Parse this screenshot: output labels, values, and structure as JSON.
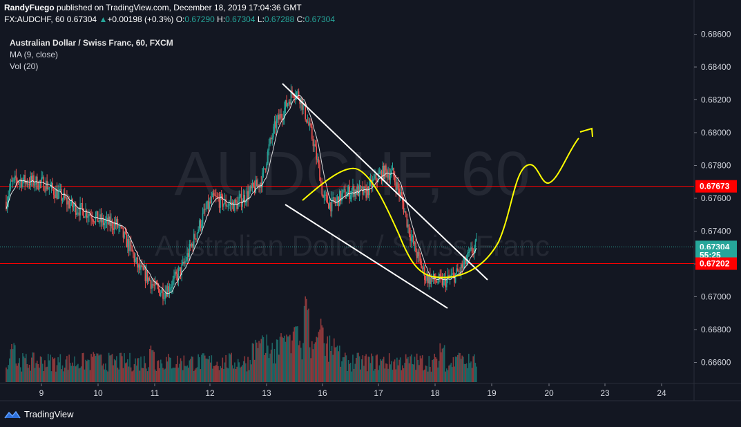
{
  "header": {
    "author": "RandyFuego",
    "published_text": "published on TradingView.com, December 18, 2019 17:04:36 GMT",
    "symbol_line": "FX:AUDCHF, 60",
    "last": "0.67304",
    "change_arrow": "▲",
    "change": "+0.00198 (+0.3%)",
    "o_label": "O:",
    "o_value": "0.67290",
    "h_label": "H:",
    "h_value": "0.67304",
    "l_label": "L:",
    "l_value": "0.67288",
    "c_label": "C:",
    "c_value": "0.67304"
  },
  "legend": {
    "title": "Australian Dollar / Swiss Franc, 60, FXCM",
    "ma": "MA (9, close)",
    "vol": "Vol (20)"
  },
  "watermark": {
    "symbol": "AUDCHF, 60",
    "name": "Australian Dollar / Swiss Franc"
  },
  "footer": {
    "brand": "TradingView"
  },
  "colors": {
    "background": "#131722",
    "up": "#26a69a",
    "down": "#ef5350",
    "level_line": "#ff0000",
    "price_label": "#26a69a",
    "drawing_white": "#ffffff",
    "drawing_yellow": "#ffff00"
  },
  "chart_data": {
    "type": "candlestick",
    "title": "Australian Dollar / Swiss Franc, 60, FXCM",
    "ylim": [
      0.6648,
      0.6864
    ],
    "y_ticks": [
      "0.68600",
      "0.68400",
      "0.68200",
      "0.68000",
      "0.67800",
      "0.67600",
      "0.67400",
      "0.67200",
      "0.67000",
      "0.66800",
      "0.66600"
    ],
    "x_ticks": [
      "9",
      "10",
      "11",
      "12",
      "13",
      "16",
      "17",
      "18",
      "19",
      "20",
      "23",
      "24"
    ],
    "price_labels": [
      {
        "text": "0.67673",
        "value": 0.67673,
        "color": "#ff0000"
      },
      {
        "text": "0.67304",
        "value": 0.67304,
        "color": "#26a69a"
      },
      {
        "text": "55:25",
        "value": 0.67252,
        "color": "#26a69a"
      },
      {
        "text": "0.67202",
        "value": 0.67202,
        "color": "#ff0000"
      }
    ],
    "horizontal_levels": [
      0.67673,
      0.67202
    ],
    "last_price": 0.67304,
    "series": [
      {
        "name": "price",
        "anchors": [
          [
            0,
            0.6758
          ],
          [
            4,
            0.6768
          ],
          [
            10,
            0.6771
          ],
          [
            25,
            0.677
          ],
          [
            35,
            0.6769
          ],
          [
            48,
            0.6762
          ],
          [
            60,
            0.6755
          ],
          [
            75,
            0.6751
          ],
          [
            88,
            0.6745
          ],
          [
            100,
            0.6744
          ],
          [
            112,
            0.673
          ],
          [
            120,
            0.6717
          ],
          [
            128,
            0.6712
          ],
          [
            135,
            0.6705
          ],
          [
            143,
            0.6703
          ],
          [
            150,
            0.6708
          ],
          [
            160,
            0.6718
          ],
          [
            170,
            0.6735
          ],
          [
            180,
            0.6752
          ],
          [
            188,
            0.676
          ],
          [
            198,
            0.6757
          ],
          [
            208,
            0.6756
          ],
          [
            218,
            0.6762
          ],
          [
            228,
            0.6768
          ],
          [
            232,
            0.6772
          ],
          [
            238,
            0.6791
          ],
          [
            244,
            0.6805
          ],
          [
            250,
            0.6812
          ],
          [
            256,
            0.682
          ],
          [
            260,
            0.6826
          ],
          [
            266,
            0.6822
          ],
          [
            272,
            0.6809
          ],
          [
            278,
            0.6795
          ],
          [
            284,
            0.6775
          ],
          [
            287,
            0.676
          ],
          [
            295,
            0.6756
          ],
          [
            305,
            0.6762
          ],
          [
            315,
            0.6765
          ],
          [
            325,
            0.6763
          ],
          [
            335,
            0.6772
          ],
          [
            342,
            0.6776
          ],
          [
            350,
            0.6775
          ],
          [
            358,
            0.676
          ],
          [
            366,
            0.6738
          ],
          [
            374,
            0.6722
          ],
          [
            380,
            0.6712
          ],
          [
            388,
            0.671
          ],
          [
            396,
            0.6709
          ],
          [
            402,
            0.6711
          ],
          [
            410,
            0.6715
          ],
          [
            416,
            0.6721
          ],
          [
            422,
            0.6728
          ],
          [
            426,
            0.6731
          ]
        ]
      },
      {
        "name": "volume",
        "max": 100
      }
    ]
  }
}
